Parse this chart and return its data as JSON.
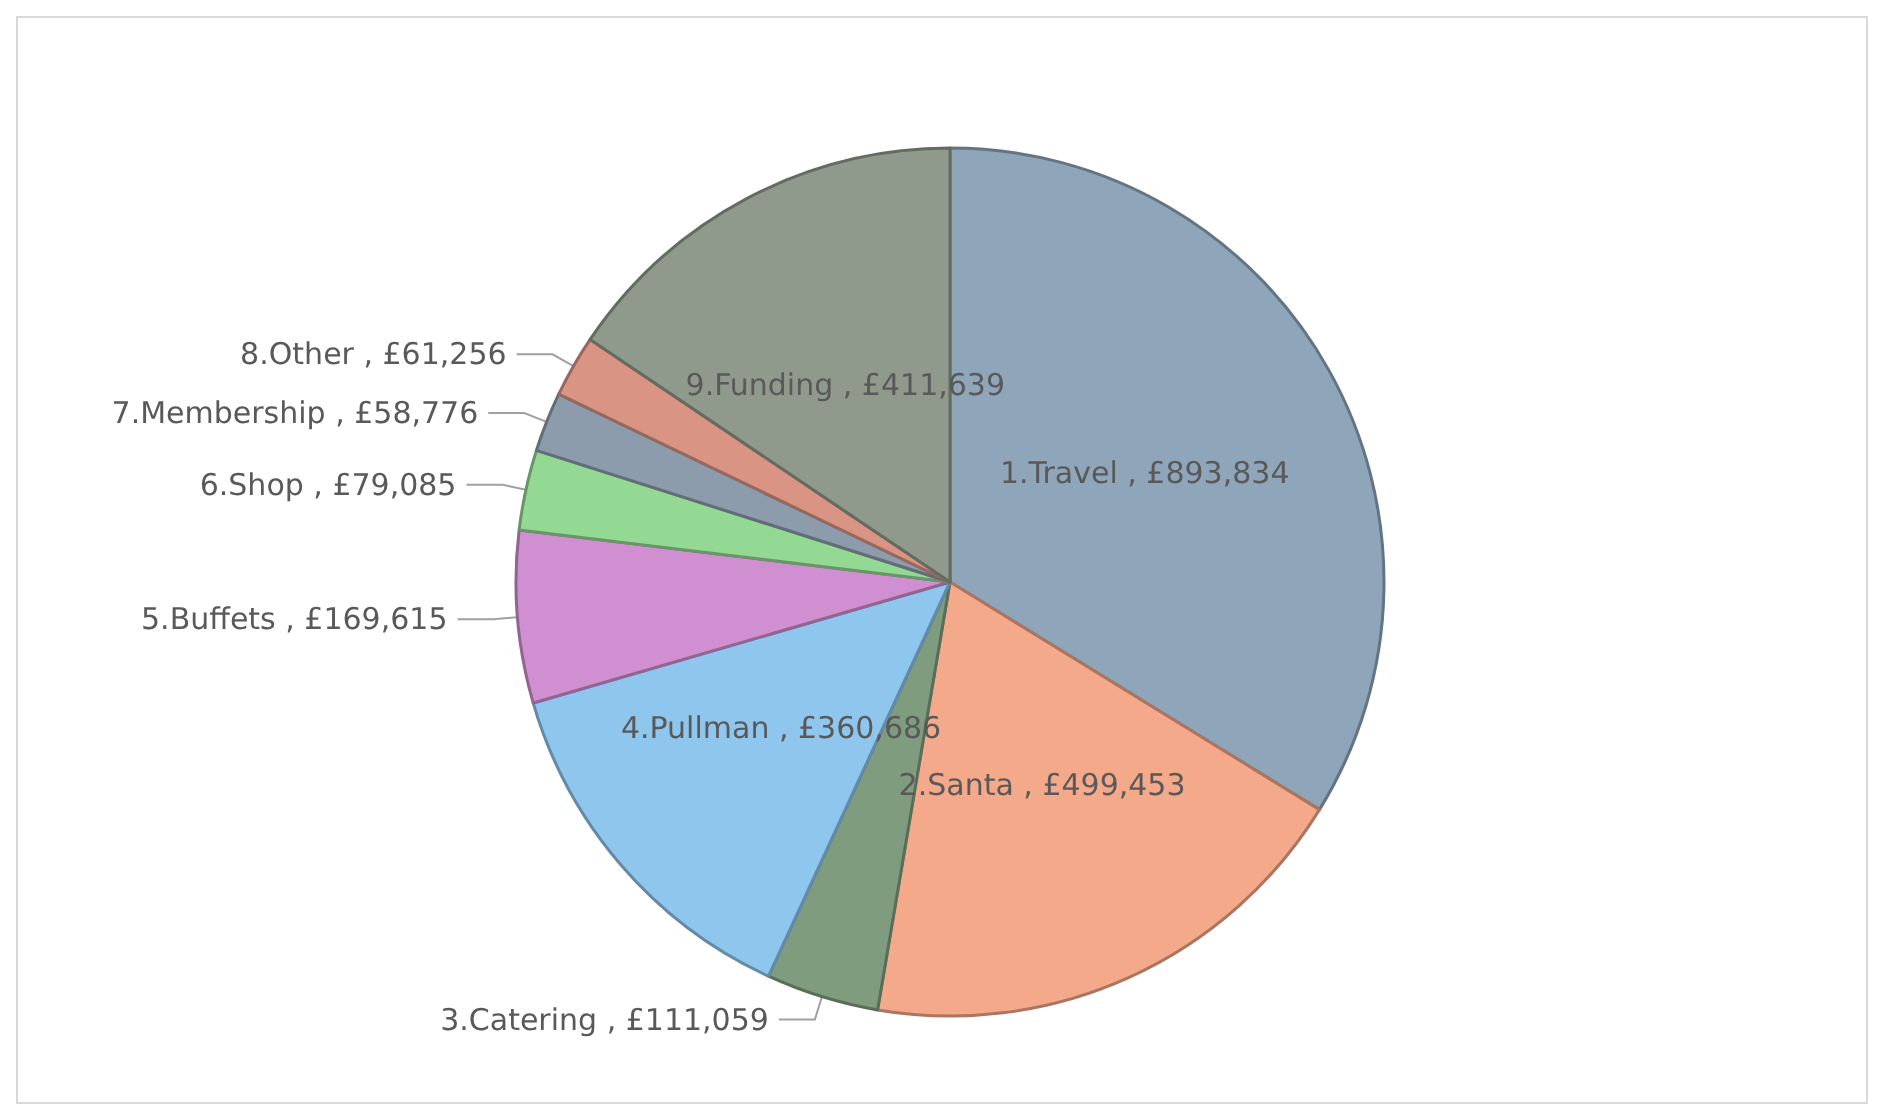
{
  "chart_data": {
    "type": "pie",
    "categories": [
      "1.Travel",
      "2.Santa",
      "3.Catering",
      "4.Pullman",
      "5.Buffets",
      "6.Shop",
      "7.Membership",
      "8.Other",
      "9.Funding"
    ],
    "values": [
      893834,
      499453,
      111059,
      360686,
      169615,
      79085,
      58776,
      61256,
      411639
    ],
    "value_labels": [
      "£893,834",
      "£499,453",
      "£111,059",
      "£360,686",
      "£169,615",
      "£79,085",
      "£58,776",
      "£61,256",
      "£411,639"
    ],
    "colors": [
      "#8fa6ba",
      "#f4a98a",
      "#7f9c7f",
      "#8ec6ee",
      "#cf8fd0",
      "#93d893",
      "#8c9cad",
      "#d99484",
      "#8f9a8c"
    ],
    "legend": false
  }
}
